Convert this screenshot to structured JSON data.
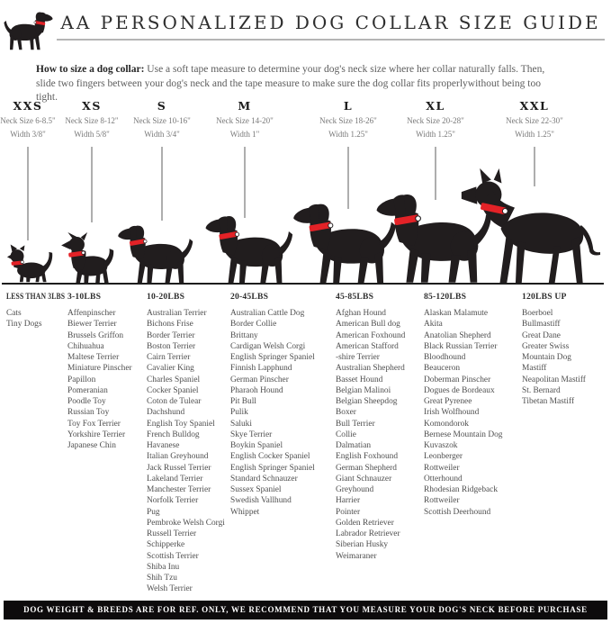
{
  "header": {
    "title": "AA PERSONALIZED DOG COLLAR SIZE GUIDE",
    "logo_icon": "dog-silhouette-with-red-collar"
  },
  "instructions": {
    "lead": "How to size a dog collar:",
    "body_text": "Use a soft tape measure to determine your dog's neck size where her collar naturally falls. Then, slide two fingers between your dog's neck and the tape measure to make sure the dog collar fits properlywithout being too tight."
  },
  "sizes": [
    {
      "label": "XXS",
      "neck": "Neck Size 6-8.5\"",
      "width": "Width 3/8\""
    },
    {
      "label": "XS",
      "neck": "Neck Size 8-12\"",
      "width": "Width 5/8\""
    },
    {
      "label": "S",
      "neck": "Neck Size 10-16\"",
      "width": "Width 3/4\""
    },
    {
      "label": "M",
      "neck": "Neck Size 14-20\"",
      "width": "Width 1\""
    },
    {
      "label": "L",
      "neck": "Neck Size 18-26\"",
      "width": "Width 1.25\""
    },
    {
      "label": "XL",
      "neck": "Neck Size 20-28\"",
      "width": "Width 1.25\""
    },
    {
      "label": "XXL",
      "neck": "Neck Size 22-30\"",
      "width": "Width 1.25\""
    }
  ],
  "weight_groups": [
    {
      "header": "LESS THAN 3LBS",
      "breeds": [
        "Cats",
        "Tiny Dogs"
      ]
    },
    {
      "header": "3-10LBS",
      "breeds": [
        "Affenpinscher",
        "Biewer Terrier",
        "Brussels Griffon",
        "Chihuahua",
        "Maltese Terrier",
        "Miniature Pinscher",
        "Papillon",
        "Pomeranian",
        "Poodle Toy",
        "Russian Toy",
        "Toy Fox Terrier",
        "Yorkshire Terrier",
        "Japanese Chin"
      ]
    },
    {
      "header": "10-20LBS",
      "breeds": [
        "Australian Terrier",
        "Bichons Frise",
        "Border Terrier",
        "Boston Terrier",
        "Cairn Terrier",
        "Cavalier King",
        "Charles Spaniel",
        "Cocker Spaniel",
        "Coton de Tulear",
        "Dachshund",
        "English Toy Spaniel",
        "French Bulldog",
        "Havanese",
        "Italian Greyhound",
        "Jack Russel Terrier",
        "Lakeland Terrier",
        "Manchester Terrier",
        "Norfolk Terrier",
        "Pug",
        "Pembroke Welsh Corgi",
        "Russell Terrier",
        "Schipperke",
        "Scottish Terrier",
        "Shiba Inu",
        "Shih Tzu",
        "Welsh Terrier"
      ]
    },
    {
      "header": "20-45LBS",
      "breeds": [
        "Australian Cattle Dog",
        "Border Collie",
        "Brittany",
        "Cardigan Welsh Corgi",
        "English Springer Spaniel",
        "Finnish Lapphund",
        "German Pinscher",
        "Pharaoh Hound",
        "Pit Bull",
        "Pulik",
        "Saluki",
        "Skye Terrier",
        "Boykin Spaniel",
        "English Cocker Spaniel",
        "English Springer Spaniel",
        "Standard Schnauzer",
        "Sussex Spaniel",
        "Swedish Vallhund",
        "Whippet"
      ]
    },
    {
      "header": "45-85LBS",
      "breeds": [
        "Afghan Hound",
        "American Bull dog",
        "American Foxhound",
        "American Stafford",
        "-shire Terrier",
        "Australian Shepherd",
        "Basset Hound",
        "Belgian Malinoi",
        "Belgian Sheepdog",
        "Boxer",
        "Bull Terrier",
        "Collie",
        "Dalmatian",
        "English Foxhound",
        "German Shepherd",
        "Giant Schnauzer",
        "Greyhound",
        "Harrier",
        "Pointer",
        "Golden Retriever",
        "Labrador Retriever",
        "Siberian Husky",
        "Weimaraner"
      ]
    },
    {
      "header": "85-120LBS",
      "breeds": [
        "Alaskan Malamute",
        "Akita",
        "Anatolian Shepherd",
        "Black Russian Terrier",
        "Bloodhound",
        "Beauceron",
        "Doberman Pinscher",
        "Dogues de Bordeaux",
        "Great Pyrenee",
        "Irish Wolfhound",
        "Komondorok",
        "Bernese Mountain Dog",
        "Kuvaszok",
        "Leonberger",
        "Rottweiler",
        "Otterhound",
        "Rhodesian Ridgeback",
        "Rottweiler",
        "Scottish Deerhound"
      ]
    },
    {
      "header": "120LBS UP",
      "breeds": [
        "Boerboel",
        "Bullmastiff",
        "Great Dane",
        "Greater Swiss",
        "Mountain Dog",
        "Mastiff",
        "Neapolitan Mastiff",
        "St. Bernard",
        "Tibetan Mastiff"
      ]
    }
  ],
  "footer": {
    "note": "DOG WEIGHT & BREEDS ARE FOR REF. ONLY, WE RECOMMEND THAT YOU MEASURE YOUR DOG'S NECK BEFORE PURCHASE"
  },
  "colors": {
    "collar_red": "#e32227",
    "silhouette_black": "#211d1e",
    "guide_line_gray": "#aeaeae",
    "footer_bg": "#0d0b0c"
  }
}
